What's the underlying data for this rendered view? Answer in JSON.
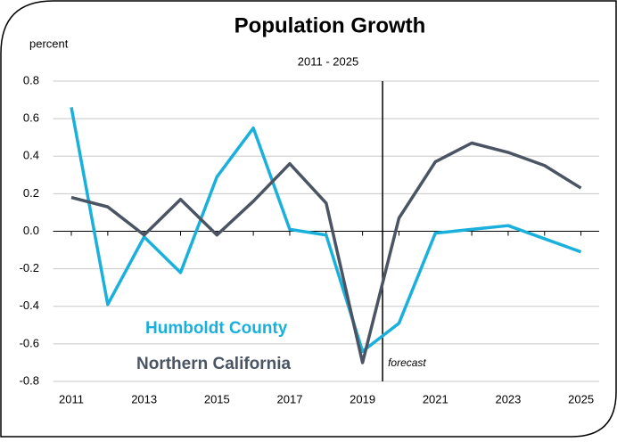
{
  "chart_data": {
    "type": "line",
    "title": "Population Growth",
    "subtitle": "2011 - 2025",
    "ylabel": "percent",
    "x": [
      2011,
      2012,
      2013,
      2014,
      2015,
      2016,
      2017,
      2018,
      2019,
      2020,
      2021,
      2022,
      2023,
      2024,
      2025
    ],
    "series": [
      {
        "name": "Humboldt County",
        "color": "#1ab0dc",
        "values": [
          0.66,
          -0.39,
          -0.03,
          -0.22,
          0.29,
          0.55,
          0.01,
          -0.02,
          -0.64,
          -0.49,
          -0.01,
          0.01,
          0.03,
          -0.04,
          -0.11
        ]
      },
      {
        "name": "Northern California",
        "color": "#4a5463",
        "values": [
          0.18,
          0.13,
          -0.02,
          0.17,
          -0.02,
          0.16,
          0.36,
          0.15,
          -0.7,
          0.07,
          0.37,
          0.47,
          0.42,
          0.35,
          0.23
        ]
      }
    ],
    "xlim": [
      2010.5,
      2025.5
    ],
    "xticks": [
      2011,
      2013,
      2015,
      2017,
      2019,
      2021,
      2023,
      2025
    ],
    "ylim": [
      -0.8,
      0.8
    ],
    "yticks": [
      -0.8,
      -0.6,
      -0.4,
      -0.2,
      {
        "value": 0,
        "label": "0.0"
      },
      0.2,
      0.4,
      0.6,
      0.8
    ],
    "grid": true,
    "annotations": [
      {
        "text": "forecast",
        "x": 2019.55
      }
    ]
  }
}
